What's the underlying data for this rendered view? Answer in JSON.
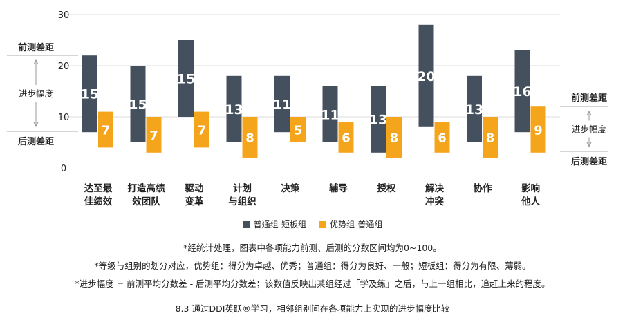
{
  "chart_data": {
    "type": "bar",
    "y_axis_ticks": [
      "0",
      "10",
      "20",
      "30"
    ],
    "ylim": [
      0,
      30
    ],
    "grid": true,
    "categories": [
      [
        "达至最",
        "佳绩效"
      ],
      [
        "打造高绩",
        "效团队"
      ],
      [
        "驱动",
        "变革"
      ],
      [
        "计划",
        "与组织"
      ],
      [
        "决策"
      ],
      [
        "辅导"
      ],
      [
        "授权"
      ],
      [
        "解决",
        "冲突"
      ],
      [
        "协作"
      ],
      [
        "影响",
        "他人"
      ]
    ],
    "series": [
      {
        "name": "普通组-短板组",
        "color": "#44505e",
        "values": [
          15,
          15,
          15,
          13,
          11,
          11,
          13,
          20,
          13,
          16
        ],
        "ranges": [
          [
            7,
            22
          ],
          [
            5,
            20
          ],
          [
            10,
            25
          ],
          [
            5,
            18
          ],
          [
            7,
            18
          ],
          [
            5,
            16
          ],
          [
            3,
            16
          ],
          [
            8,
            28
          ],
          [
            5,
            18
          ],
          [
            7,
            23
          ]
        ]
      },
      {
        "name": "优势组-普通组",
        "color": "#f5a51c",
        "values": [
          7,
          7,
          7,
          8,
          5,
          6,
          8,
          6,
          8,
          9
        ],
        "ranges": [
          [
            4,
            11
          ],
          [
            3,
            10
          ],
          [
            4,
            11
          ],
          [
            2,
            10
          ],
          [
            5,
            10
          ],
          [
            3,
            9
          ],
          [
            2,
            10
          ],
          [
            3,
            9
          ],
          [
            2,
            10
          ],
          [
            3,
            12
          ]
        ]
      }
    ],
    "annotations": {
      "left": {
        "pre_gap": "前测差距",
        "progress": "进步幅度",
        "post_gap": "后测差距"
      },
      "right": {
        "pre_gap": "前测差距",
        "progress": "进步幅度",
        "post_gap": "后测差距"
      }
    },
    "legend_position": "bottom"
  },
  "notes": [
    "*经统计处理，图表中各项能力前测、后测的分数区间均为0~100。",
    "*等级与组别的划分对应，优势组：得分为卓越、优秀；普通组：得分为良好、一般；短板组：得分为有限、薄弱。",
    "*进步幅度 = 前测平均分数差 - 后测平均分数差；该数值反映出某组经过「学及练」之后，与上一组相比，追赶上来的程度。"
  ],
  "caption": "8.3 通过DDI英跃®学习，相邻组别间在各项能力上实现的进步幅度比较"
}
